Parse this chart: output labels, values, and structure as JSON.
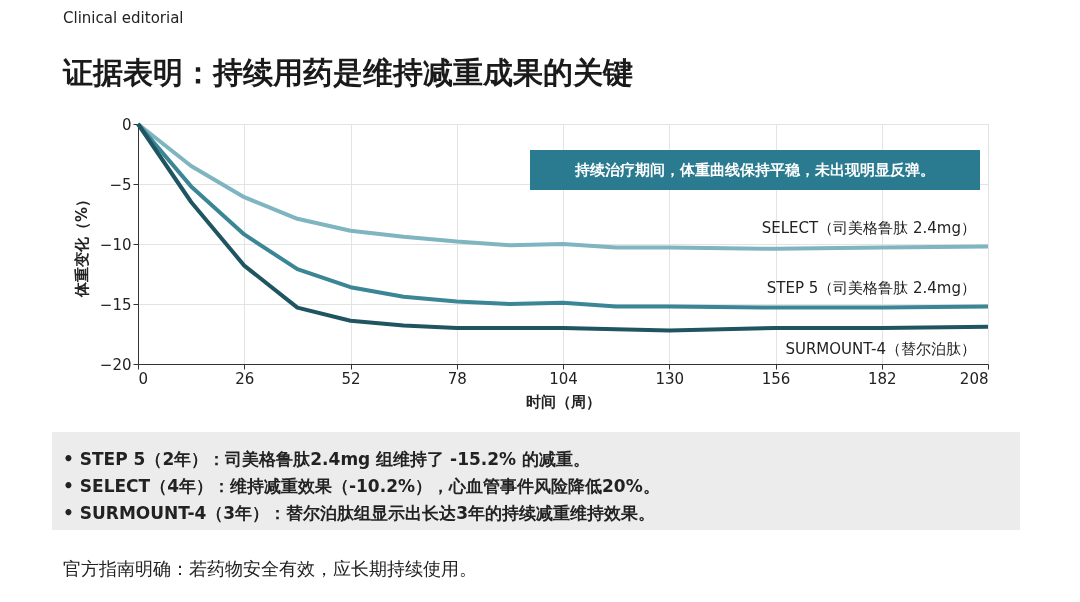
{
  "chart_data": {
    "type": "line",
    "title": "证据表明：持续用药是维持减重成果的关键",
    "xlabel": "时间（周）",
    "ylabel": "体重变化（%）",
    "xlim": [
      0,
      208
    ],
    "xticks": [
      0,
      26,
      52,
      78,
      104,
      130,
      156,
      182,
      208
    ],
    "ylim": [
      -20,
      0
    ],
    "yticks": [
      -20,
      -15,
      -10,
      -5,
      0
    ],
    "grid": true,
    "legend": false,
    "marker": "none",
    "line_style": "solid",
    "series": [
      {
        "name": "SELECT（司美格鲁肽 2.4mg）",
        "color": "#7fb5c0",
        "x": [
          0,
          13,
          26,
          39,
          52,
          65,
          78,
          91,
          104,
          117,
          130,
          156,
          182,
          208
        ],
        "values": [
          0,
          -3.5,
          -6.1,
          -7.9,
          -8.9,
          -9.4,
          -9.8,
          -10.1,
          -10.0,
          -10.3,
          -10.3,
          -10.4,
          -10.3,
          -10.2
        ]
      },
      {
        "name": "STEP 5（司美格鲁肽 2.4mg）",
        "color": "#3a8696",
        "x": [
          0,
          13,
          26,
          39,
          52,
          65,
          78,
          91,
          104,
          117,
          130,
          156,
          182,
          208
        ],
        "values": [
          0,
          -5.2,
          -9.2,
          -12.1,
          -13.6,
          -14.4,
          -14.8,
          -15.0,
          -14.9,
          -15.2,
          -15.2,
          -15.3,
          -15.3,
          -15.2
        ]
      },
      {
        "name": "SURMOUNT-4（替尔泊肽）",
        "color": "#1f5560",
        "x": [
          0,
          13,
          26,
          39,
          52,
          65,
          78,
          104,
          130,
          156,
          182,
          208
        ],
        "values": [
          0,
          -6.5,
          -11.8,
          -15.3,
          -16.4,
          -16.8,
          -17.0,
          -17.0,
          -17.2,
          -17.0,
          -17.0,
          -16.9
        ]
      }
    ],
    "annotations": [
      "Clinical editorial",
      "持续治疗期间，体重曲线保持平稳，未出现明显反弹。",
      "•  STEP 5（2年）：司美格鲁肽2.4mg 组维持了 -15.2% 的减重。",
      "•  SELECT（4年）：维持减重效果（-10.2%），心血管事件风险降低20%。",
      "•  SURMOUNT-4（3年）：替尔泊肽组显示出长达3年的持续减重维持效果。",
      "官方指南明确：若药物安全有效，应长期持续使用。"
    ]
  }
}
